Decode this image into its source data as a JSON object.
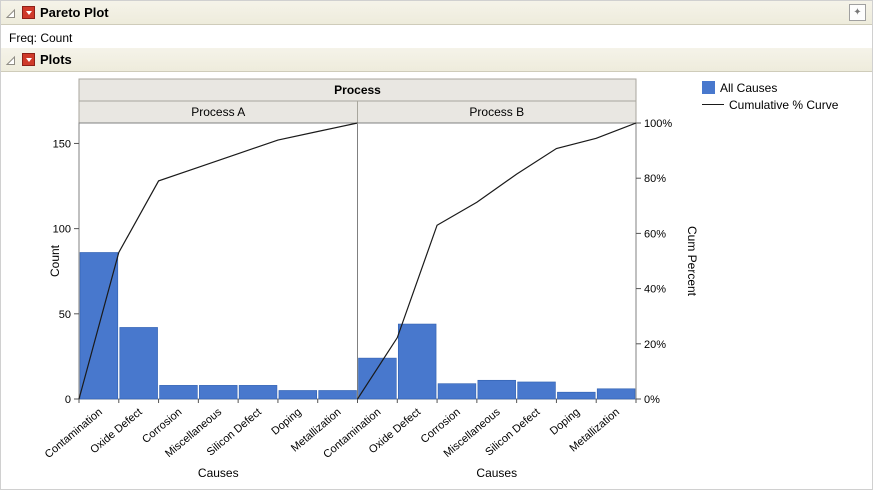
{
  "window": {
    "title": "Pareto Plot",
    "freq_label": "Freq: Count",
    "plots_title": "Plots"
  },
  "icons": {
    "disclosure": "open-triangle-expanded",
    "red_menu": "red-triangle-menu",
    "corner": "window-actions"
  },
  "legend": {
    "items": [
      {
        "label": "All Causes",
        "type": "swatch",
        "color": "#4878cd"
      },
      {
        "label": "Cumulative % Curve",
        "type": "line",
        "color": "#1a1a1a"
      }
    ]
  },
  "chart_data": {
    "type": "bar",
    "title": "Process",
    "panels": [
      {
        "name": "Process A",
        "values": [
          86,
          42,
          8,
          8,
          8,
          5,
          5
        ]
      },
      {
        "name": "Process B",
        "values": [
          24,
          44,
          9,
          11,
          10,
          4,
          6
        ]
      }
    ],
    "categories": [
      "Contamination",
      "Oxide Defect",
      "Corrosion",
      "Miscellaneous",
      "Silicon Defect",
      "Doping",
      "Metallization"
    ],
    "xlabel": "Causes",
    "ylabel_left": "Count",
    "ylabel_right": "Cum Percent",
    "y_ticks_left": [
      0,
      50,
      100,
      150
    ],
    "y_ticks_right": [
      "0%",
      "20%",
      "40%",
      "60%",
      "80%",
      "100%"
    ],
    "ylim_left": [
      0,
      162
    ],
    "bar_color": "#4878cd",
    "bar_border_color": "#3060b0",
    "curve_color": "#1a1a1a",
    "strip_fill": "#e9e7e2",
    "strip_border": "#a8a69d",
    "frame_color": "#808080",
    "legend_position": "top-right",
    "grid": false
  }
}
